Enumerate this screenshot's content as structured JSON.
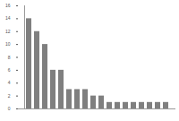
{
  "chart_data": {
    "type": "bar",
    "categories": [
      null,
      null,
      null,
      null,
      null,
      null,
      null,
      null,
      null,
      null,
      null,
      null,
      null,
      null,
      null,
      null,
      null,
      null
    ],
    "values": [
      14,
      12,
      10,
      6,
      6,
      3,
      3,
      3,
      2,
      2,
      1,
      1,
      1,
      1,
      1,
      1,
      1,
      1
    ],
    "color": "#7f7f7f",
    "ylim": [
      0,
      16
    ],
    "yticks": [
      0,
      2,
      4,
      6,
      8,
      10,
      12,
      14,
      16
    ],
    "grid": false
  }
}
